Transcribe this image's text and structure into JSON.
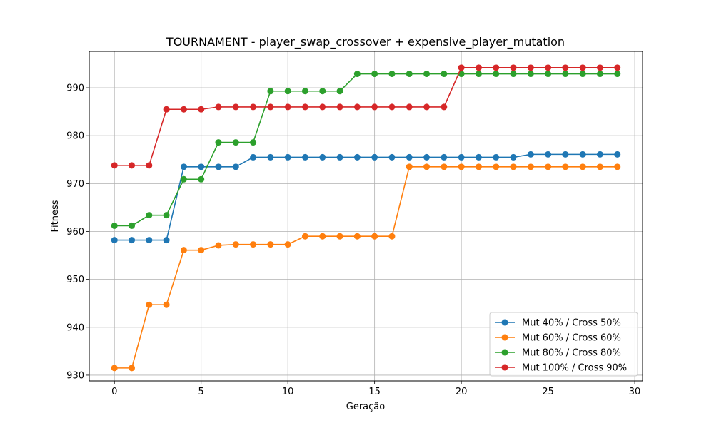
{
  "chart_data": {
    "type": "line",
    "title": "TOURNAMENT - player_swap_crossover + expensive_player_mutation",
    "xlabel": "Geração",
    "ylabel": "Fitness",
    "xlim": [
      -1.45,
      30.45
    ],
    "ylim": [
      928.8,
      997.6
    ],
    "xticks": [
      0,
      5,
      10,
      15,
      20,
      25,
      30
    ],
    "yticks": [
      930,
      940,
      950,
      960,
      970,
      980,
      990
    ],
    "grid": true,
    "legend_position": "lower-right",
    "x": [
      0,
      1,
      2,
      3,
      4,
      5,
      6,
      7,
      8,
      9,
      10,
      11,
      12,
      13,
      14,
      15,
      16,
      17,
      18,
      19,
      20,
      21,
      22,
      23,
      24,
      25,
      26,
      27,
      28,
      29
    ],
    "series": [
      {
        "name": "Mut 40% / Cross 50%",
        "color": "#1f77b4",
        "values": [
          958.2,
          958.2,
          958.2,
          958.2,
          973.5,
          973.5,
          973.5,
          973.5,
          975.5,
          975.5,
          975.5,
          975.5,
          975.5,
          975.5,
          975.5,
          975.5,
          975.5,
          975.5,
          975.5,
          975.5,
          975.5,
          975.5,
          975.5,
          975.5,
          976.1,
          976.1,
          976.1,
          976.1,
          976.1,
          976.1
        ]
      },
      {
        "name": "Mut 60% / Cross 60%",
        "color": "#ff7f0e",
        "values": [
          931.5,
          931.5,
          944.7,
          944.7,
          956.1,
          956.1,
          957.1,
          957.3,
          957.3,
          957.3,
          957.3,
          959.0,
          959.0,
          959.0,
          959.0,
          959.0,
          959.0,
          973.5,
          973.5,
          973.5,
          973.5,
          973.5,
          973.5,
          973.5,
          973.5,
          973.5,
          973.5,
          973.5,
          973.5,
          973.5
        ]
      },
      {
        "name": "Mut 80% / Cross 80%",
        "color": "#2ca02c",
        "values": [
          961.2,
          961.2,
          963.4,
          963.4,
          970.9,
          970.9,
          978.6,
          978.6,
          978.6,
          989.3,
          989.3,
          989.3,
          989.3,
          989.3,
          992.9,
          992.9,
          992.9,
          992.9,
          992.9,
          992.9,
          992.9,
          992.9,
          992.9,
          992.9,
          992.9,
          992.9,
          992.9,
          992.9,
          992.9,
          992.9
        ]
      },
      {
        "name": "Mut 100% / Cross 90%",
        "color": "#d62728",
        "values": [
          973.8,
          973.8,
          973.8,
          985.5,
          985.5,
          985.5,
          986.0,
          986.0,
          986.0,
          986.0,
          986.0,
          986.0,
          986.0,
          986.0,
          986.0,
          986.0,
          986.0,
          986.0,
          986.0,
          986.0,
          994.2,
          994.2,
          994.2,
          994.2,
          994.2,
          994.2,
          994.2,
          994.2,
          994.2,
          994.2
        ]
      }
    ]
  }
}
